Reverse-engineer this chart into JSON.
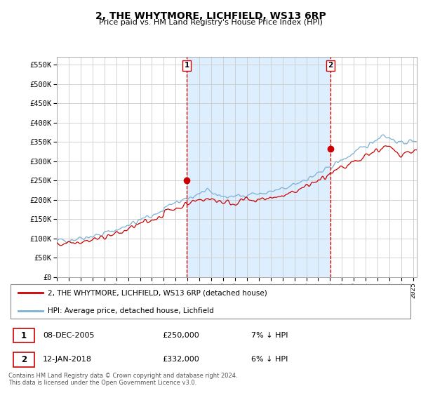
{
  "title": "2, THE WHYTMORE, LICHFIELD, WS13 6RP",
  "subtitle": "Price paid vs. HM Land Registry's House Price Index (HPI)",
  "ylim": [
    0,
    570000
  ],
  "xlim_start": 1995.0,
  "xlim_end": 2025.3,
  "transaction1_date": 2005.93,
  "transaction1_price": 250000,
  "transaction2_date": 2018.04,
  "transaction2_price": 332000,
  "legend_entry1": "2, THE WHYTMORE, LICHFIELD, WS13 6RP (detached house)",
  "legend_entry2": "HPI: Average price, detached house, Lichfield",
  "table_row1_num": "1",
  "table_row1_date": "08-DEC-2005",
  "table_row1_price": "£250,000",
  "table_row1_hpi": "7% ↓ HPI",
  "table_row2_num": "2",
  "table_row2_date": "12-JAN-2018",
  "table_row2_price": "£332,000",
  "table_row2_hpi": "6% ↓ HPI",
  "footnote": "Contains HM Land Registry data © Crown copyright and database right 2024.\nThis data is licensed under the Open Government Licence v3.0.",
  "line_color_red": "#cc0000",
  "line_color_blue": "#7ab0d4",
  "shade_color": "#ddeeff",
  "vline_color": "#cc0000",
  "grid_color": "#cccccc",
  "chart_bg": "#ffffff"
}
